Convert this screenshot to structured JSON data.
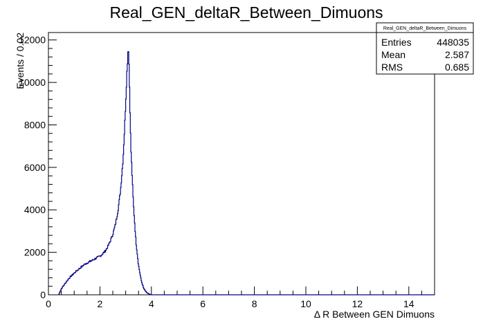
{
  "chart_data": {
    "type": "histogram",
    "title": "Real_GEN_deltaR_Between_Dimuons",
    "xlabel": "Δ R Between GEN Dimuons",
    "ylabel": "Events / 0.02",
    "xlim": [
      0,
      15
    ],
    "ylim": [
      0,
      12350
    ],
    "bin_width": 0.02,
    "line_color": "#000080",
    "x_ticks": [
      0,
      2,
      4,
      6,
      8,
      10,
      12,
      14
    ],
    "y_ticks": [
      0,
      2000,
      4000,
      6000,
      8000,
      10000,
      12000
    ],
    "curve": {
      "x": [
        0.4,
        0.45,
        0.5,
        0.6,
        0.7,
        0.8,
        0.9,
        1.0,
        1.1,
        1.2,
        1.3,
        1.4,
        1.5,
        1.6,
        1.7,
        1.8,
        1.9,
        2.0,
        2.1,
        2.2,
        2.3,
        2.4,
        2.5,
        2.6,
        2.7,
        2.8,
        2.9,
        2.95,
        3.0,
        3.05,
        3.1,
        3.12,
        3.15,
        3.2,
        3.3,
        3.4,
        3.5,
        3.6,
        3.7,
        3.8,
        3.9,
        3.95,
        4.0,
        4.1
      ],
      "y": [
        0,
        150,
        280,
        450,
        620,
        780,
        900,
        1020,
        1130,
        1230,
        1330,
        1430,
        1500,
        1560,
        1620,
        1690,
        1750,
        1820,
        1920,
        2050,
        2250,
        2520,
        2850,
        3300,
        3950,
        4900,
        6400,
        7600,
        9000,
        10500,
        11700,
        11400,
        9800,
        7000,
        4300,
        2500,
        1400,
        700,
        300,
        120,
        40,
        15,
        0,
        0
      ]
    },
    "stats": {
      "name": "Real_GEN_deltaR_Between_Dimuons",
      "rows": [
        {
          "label": "Entries",
          "value": "448035"
        },
        {
          "label": "Mean",
          "value": "2.587"
        },
        {
          "label": "RMS",
          "value": "0.685"
        }
      ]
    }
  }
}
